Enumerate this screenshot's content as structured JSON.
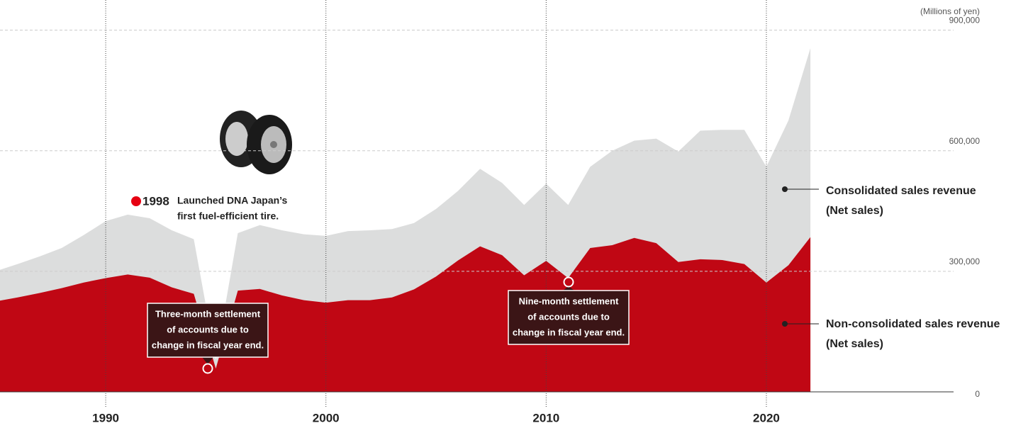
{
  "chart_data": {
    "type": "area",
    "unit_label": "(Millions of yen)",
    "x": [
      1985,
      1986,
      1987,
      1988,
      1989,
      1990,
      1991,
      1992,
      1993,
      1994,
      1995,
      1996,
      1997,
      1998,
      1999,
      2000,
      2001,
      2002,
      2003,
      2004,
      2005,
      2006,
      2007,
      2008,
      2009,
      2010,
      2011,
      2012,
      2013,
      2014,
      2015,
      2016,
      2017,
      2018,
      2019,
      2020,
      2021,
      2022
    ],
    "series": [
      {
        "name": [
          "Consolidated sales revenue",
          "(Net sales)"
        ],
        "color": "#dcdddd",
        "values": [
          300000,
          318000,
          337000,
          358000,
          390000,
          425000,
          441000,
          432000,
          402000,
          380000,
          80000,
          395000,
          415000,
          402000,
          392000,
          388000,
          400000,
          402000,
          405000,
          420000,
          455000,
          500000,
          555000,
          520000,
          465000,
          518000,
          465000,
          560000,
          600000,
          625000,
          630000,
          598000,
          650000,
          652000,
          652000,
          560000,
          675000,
          855000
        ]
      },
      {
        "name": [
          "Non-consolidated sales revenue",
          "(Net sales)"
        ],
        "color": "#c00714",
        "values": [
          225000,
          235000,
          246000,
          258000,
          272000,
          283000,
          292000,
          284000,
          260000,
          244000,
          58000,
          252000,
          256000,
          240000,
          228000,
          222000,
          228000,
          228000,
          235000,
          255000,
          287000,
          327000,
          362000,
          340000,
          290000,
          326000,
          283000,
          358000,
          365000,
          383000,
          370000,
          323000,
          330000,
          328000,
          318000,
          272000,
          315000,
          385000
        ]
      }
    ],
    "xlim": [
      1985.2,
      2028.5
    ],
    "xticks": [
      1990,
      2000,
      2010,
      2020
    ],
    "ylim": [
      0,
      975000
    ],
    "yticks": [
      0,
      {
        "value": 300000,
        "label": "300,000"
      },
      {
        "value": 600000,
        "label": "600,000"
      },
      {
        "value": 900000,
        "label": "900,000"
      }
    ],
    "grid": true,
    "annotations": [
      {
        "year_label": "1998",
        "lines": [
          "Launched DNA Japan’s",
          "first fuel-efficient tire."
        ]
      },
      {
        "lines": [
          "Three-month settlement",
          "of accounts due to",
          "change in fiscal year end."
        ]
      },
      {
        "lines": [
          "Nine-month settlement",
          "of accounts due to",
          "change in fiscal year end."
        ]
      }
    ]
  }
}
